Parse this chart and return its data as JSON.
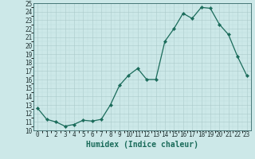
{
  "x": [
    0,
    1,
    2,
    3,
    4,
    5,
    6,
    7,
    8,
    9,
    10,
    11,
    12,
    13,
    14,
    15,
    16,
    17,
    18,
    19,
    20,
    21,
    22,
    23
  ],
  "y": [
    12.6,
    11.3,
    11.0,
    10.5,
    10.7,
    11.2,
    11.1,
    11.3,
    13.0,
    15.3,
    16.5,
    17.3,
    16.0,
    16.0,
    20.5,
    22.0,
    23.8,
    23.2,
    24.5,
    24.4,
    22.5,
    21.3,
    18.7,
    16.5
  ],
  "xlabel": "Humidex (Indice chaleur)",
  "line_color": "#1a6b5a",
  "marker": "D",
  "marker_size": 2.2,
  "bg_color": "#cce8e8",
  "grid_color_major": "#aacaca",
  "xlim": [
    -0.5,
    23.5
  ],
  "ylim": [
    10,
    25
  ],
  "yticks": [
    10,
    11,
    12,
    13,
    14,
    15,
    16,
    17,
    18,
    19,
    20,
    21,
    22,
    23,
    24,
    25
  ],
  "xticks": [
    0,
    1,
    2,
    3,
    4,
    5,
    6,
    7,
    8,
    9,
    10,
    11,
    12,
    13,
    14,
    15,
    16,
    17,
    18,
    19,
    20,
    21,
    22,
    23
  ],
  "tick_fontsize": 5.5,
  "xlabel_fontsize": 7.0,
  "spine_color": "#336666"
}
